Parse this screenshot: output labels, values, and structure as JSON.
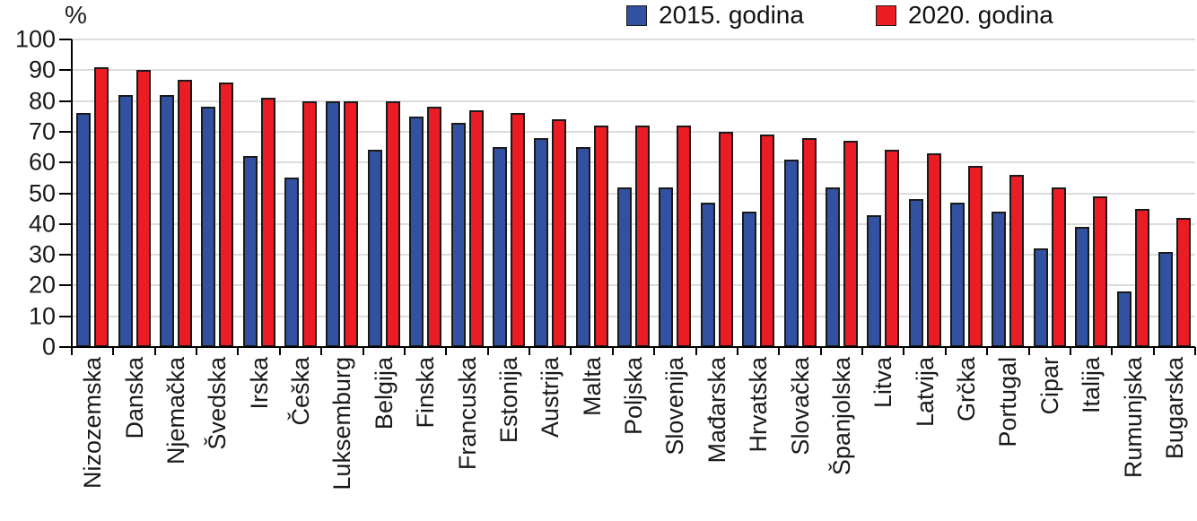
{
  "chart_data": {
    "type": "bar",
    "title": "",
    "unit_label": "%",
    "xlabel": "",
    "ylabel": "%",
    "ylim": [
      0,
      100
    ],
    "ytick_step": 10,
    "grid": true,
    "legend_position": "top-right",
    "background": "#FFFFFF",
    "axis_color": "#000000",
    "gridline_color": "#DCDCDC",
    "bar_border_color": "#1A1A1A",
    "categories": [
      "Nizozemska",
      "Danska",
      "Njemačka",
      "Švedska",
      "Irska",
      "Češka",
      "Luksemburg",
      "Belgija",
      "Finska",
      "Francuska",
      "Estonija",
      "Austrija",
      "Malta",
      "Poljska",
      "Slovenija",
      "Mađarska",
      "Hrvatska",
      "Slovačka",
      "Španjolska",
      "Litva",
      "Latvija",
      "Grčka",
      "Portugal",
      "Cipar",
      "Italija",
      "Rumunjska",
      "Bugarska"
    ],
    "series": [
      {
        "name": "2015. godina",
        "color": "#3351A1",
        "values": [
          76,
          82,
          82,
          78,
          62,
          55,
          80,
          64,
          75,
          73,
          65,
          68,
          65,
          52,
          52,
          47,
          44,
          61,
          52,
          43,
          48,
          47,
          44,
          32,
          39,
          18,
          31
        ]
      },
      {
        "name": "2020. godina",
        "color": "#EC1C24",
        "values": [
          91,
          90,
          87,
          86,
          81,
          80,
          80,
          80,
          78,
          77,
          76,
          74,
          72,
          72,
          72,
          70,
          69,
          68,
          67,
          64,
          63,
          59,
          56,
          52,
          49,
          45,
          42
        ]
      }
    ]
  }
}
